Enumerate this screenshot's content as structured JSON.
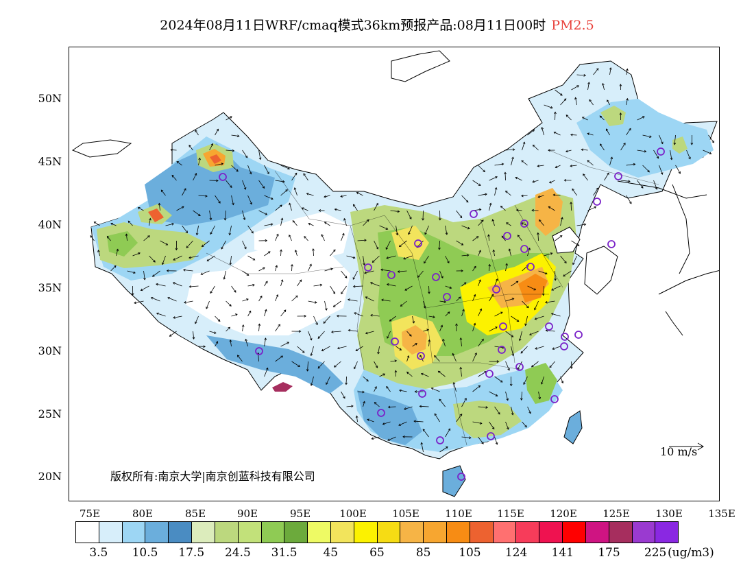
{
  "title": {
    "main": "2024年08月11日WRF/cmaq模式36km预报产品:08月11日00时",
    "variable": "PM2.5",
    "variable_color": "#e8403a"
  },
  "map": {
    "lat_labels": [
      "50N",
      "45N",
      "40N",
      "35N",
      "30N",
      "25N",
      "20N"
    ],
    "lon_labels": [
      "75E",
      "80E",
      "85E",
      "90E",
      "95E",
      "100E",
      "105E",
      "110E",
      "115E",
      "120E",
      "125E",
      "130E",
      "135E"
    ],
    "copyright": "版权所有:南京大学|南京创蓝科技有限公司",
    "wind_reference": "10 m/s",
    "station_marker_color": "#7a22c8"
  },
  "legend": {
    "colors": [
      "#ffffff",
      "#d7eefa",
      "#9dd6f4",
      "#6baedc",
      "#4a8cc2",
      "#dcecbc",
      "#bcd87e",
      "#c2e17a",
      "#8fcb54",
      "#6caa3c",
      "#eefa64",
      "#f2e45c",
      "#fcf200",
      "#f6dc14",
      "#f6b446",
      "#f7a630",
      "#f78c14",
      "#ed6230",
      "#ff7070",
      "#f73c5a",
      "#ef1250",
      "#ff0000",
      "#cf1482",
      "#a62e5e",
      "#9a3ad0",
      "#8a28e2"
    ],
    "labels": [
      "3.5",
      "10.5",
      "17.5",
      "24.5",
      "31.5",
      "45",
      "65",
      "85",
      "105",
      "124",
      "141",
      "175",
      "225"
    ],
    "unit": "(ug/m3)"
  }
}
